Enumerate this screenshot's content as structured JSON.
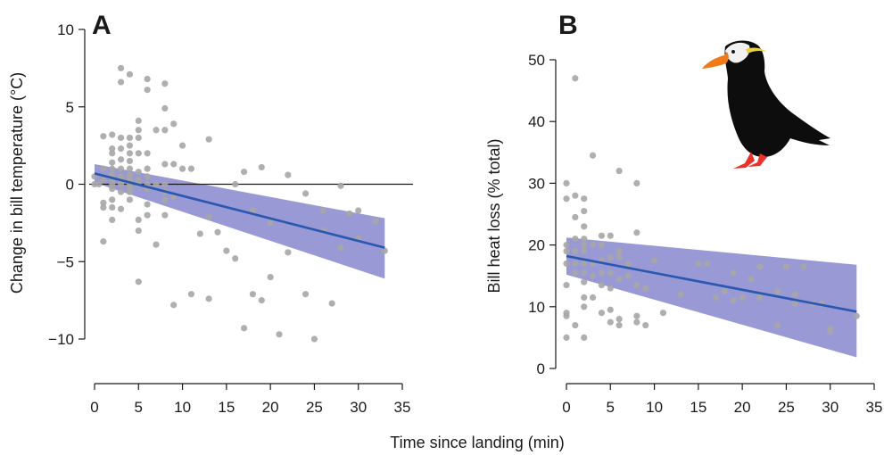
{
  "shared": {
    "xlabel": "Time since landing (min)"
  },
  "colors": {
    "points": "#a6a6a6",
    "line": "#2a57b0",
    "band": "#5b5bbd",
    "zero": "#1a1a1a",
    "puffin_body": "#0d0d0d",
    "puffin_bill": "#f07a1a",
    "puffin_feet": "#e8322b",
    "puffin_plume": "#e9d24a"
  },
  "icons": {
    "puffin": "tufted-puffin-silhouette-icon"
  },
  "chart_data": [
    {
      "type": "scatter",
      "panel_label": "A",
      "title": "",
      "xlabel": "Time since landing (min)",
      "ylabel": "Change in bill temperature (°C)",
      "xlim": [
        0,
        35
      ],
      "ylim": [
        -10,
        10
      ],
      "x_ticks": [
        "0",
        "5",
        "10",
        "15",
        "20",
        "25",
        "30",
        "35"
      ],
      "y_ticks": [
        "−10",
        "−5",
        "0",
        "5",
        "10"
      ],
      "y_tick_values": [
        -10,
        -5,
        0,
        5,
        10
      ],
      "zero_line": true,
      "grid": false,
      "points": [
        [
          0,
          0
        ],
        [
          0,
          0.5
        ],
        [
          0.5,
          0
        ],
        [
          1,
          -3.7
        ],
        [
          1,
          -1.2
        ],
        [
          1,
          -1.5
        ],
        [
          1,
          0.3
        ],
        [
          1,
          1
        ],
        [
          1,
          3.1
        ],
        [
          2,
          -2.3
        ],
        [
          2,
          -1.5
        ],
        [
          2,
          -1
        ],
        [
          2,
          -0.3
        ],
        [
          2,
          0
        ],
        [
          2,
          0.3
        ],
        [
          2,
          0.6
        ],
        [
          2,
          1
        ],
        [
          2,
          1.4
        ],
        [
          2,
          2
        ],
        [
          2,
          2.3
        ],
        [
          2,
          3.2
        ],
        [
          3,
          -1.6
        ],
        [
          3,
          -0.5
        ],
        [
          3,
          0
        ],
        [
          3,
          0.3
        ],
        [
          3,
          0.5
        ],
        [
          3,
          1
        ],
        [
          3,
          1.6
        ],
        [
          3,
          2.3
        ],
        [
          3,
          3
        ],
        [
          3,
          6.6
        ],
        [
          3,
          7.5
        ],
        [
          4,
          -1
        ],
        [
          4,
          -0.5
        ],
        [
          4,
          -0.2
        ],
        [
          4,
          0
        ],
        [
          4,
          0.3
        ],
        [
          4,
          0.6
        ],
        [
          4,
          1
        ],
        [
          4,
          1.5
        ],
        [
          4,
          2
        ],
        [
          4,
          2.5
        ],
        [
          4,
          3
        ],
        [
          4,
          7.1
        ],
        [
          5,
          -6.3
        ],
        [
          5,
          -3
        ],
        [
          5,
          -2.3
        ],
        [
          5,
          0
        ],
        [
          5,
          0.3
        ],
        [
          5,
          0.8
        ],
        [
          5,
          2
        ],
        [
          5,
          3
        ],
        [
          5,
          3.5
        ],
        [
          5,
          4.1
        ],
        [
          6,
          -2
        ],
        [
          6,
          -1.3
        ],
        [
          6,
          -0.3
        ],
        [
          6,
          0
        ],
        [
          6,
          0.5
        ],
        [
          6,
          1
        ],
        [
          6,
          2
        ],
        [
          6,
          6.1
        ],
        [
          6,
          6.8
        ],
        [
          7,
          -3.9
        ],
        [
          7,
          0
        ],
        [
          7,
          3.5
        ],
        [
          8,
          -2
        ],
        [
          8,
          -1
        ],
        [
          8,
          -0.5
        ],
        [
          8,
          0
        ],
        [
          8,
          1.3
        ],
        [
          8,
          3.5
        ],
        [
          8,
          4.9
        ],
        [
          8,
          6.5
        ],
        [
          9,
          -7.8
        ],
        [
          9,
          -0.8
        ],
        [
          9,
          1.3
        ],
        [
          9,
          3.9
        ],
        [
          10,
          1
        ],
        [
          10,
          2.5
        ],
        [
          11,
          -7.1
        ],
        [
          11,
          1
        ],
        [
          12,
          -3.2
        ],
        [
          13,
          -7.4
        ],
        [
          13,
          -2.1
        ],
        [
          13,
          2.9
        ],
        [
          14,
          -3.1
        ],
        [
          15,
          -4.3
        ],
        [
          16,
          -4.8
        ],
        [
          16,
          0
        ],
        [
          17,
          -9.3
        ],
        [
          17,
          0.8
        ],
        [
          18,
          -7.1
        ],
        [
          18,
          -1.7
        ],
        [
          19,
          -7.5
        ],
        [
          19,
          1.1
        ],
        [
          20,
          -6
        ],
        [
          20,
          -2.5
        ],
        [
          21,
          -9.7
        ],
        [
          22,
          -4.4
        ],
        [
          22,
          0.6
        ],
        [
          24,
          -7.1
        ],
        [
          24,
          -0.6
        ],
        [
          25,
          -10
        ],
        [
          26,
          -3
        ],
        [
          26,
          -1.7
        ],
        [
          27,
          -7.7
        ],
        [
          28,
          -4.1
        ],
        [
          28,
          -0.1
        ],
        [
          29,
          -1.9
        ],
        [
          30,
          -3.5
        ],
        [
          30,
          -1.7
        ],
        [
          32,
          -2.4
        ],
        [
          33,
          -4.3
        ]
      ],
      "fit": {
        "x": [
          0,
          33
        ],
        "y": [
          0.7,
          -4.1
        ]
      },
      "band": {
        "x": [
          0,
          33
        ],
        "upper": [
          1.3,
          -2.2
        ],
        "lower": [
          0.1,
          -6.1
        ]
      }
    },
    {
      "type": "scatter",
      "panel_label": "B",
      "title": "",
      "xlabel": "Time since landing (min)",
      "ylabel": "Bill heat loss (% total)",
      "xlim": [
        0,
        35
      ],
      "ylim": [
        0,
        50
      ],
      "x_ticks": [
        "0",
        "5",
        "10",
        "15",
        "20",
        "25",
        "30",
        "35"
      ],
      "y_ticks": [
        "0",
        "10",
        "20",
        "30",
        "40",
        "50"
      ],
      "y_tick_values": [
        0,
        10,
        20,
        30,
        40,
        50
      ],
      "zero_line": false,
      "grid": false,
      "points": [
        [
          0,
          5
        ],
        [
          0,
          8.5
        ],
        [
          0,
          9
        ],
        [
          0,
          13.5
        ],
        [
          0,
          17
        ],
        [
          0,
          19
        ],
        [
          0,
          20
        ],
        [
          0,
          27.5
        ],
        [
          0,
          30
        ],
        [
          1,
          7
        ],
        [
          1,
          15.5
        ],
        [
          1,
          17
        ],
        [
          1,
          19
        ],
        [
          1,
          21
        ],
        [
          1,
          24.5
        ],
        [
          1,
          28
        ],
        [
          1,
          47
        ],
        [
          2,
          5
        ],
        [
          2,
          10
        ],
        [
          2,
          11.5
        ],
        [
          2,
          14
        ],
        [
          2,
          15.5
        ],
        [
          2,
          17
        ],
        [
          2,
          19
        ],
        [
          2,
          20
        ],
        [
          2,
          21
        ],
        [
          2,
          23
        ],
        [
          2,
          25.5
        ],
        [
          2,
          27.5
        ],
        [
          3,
          11.5
        ],
        [
          3,
          15
        ],
        [
          3,
          17
        ],
        [
          3,
          20
        ],
        [
          3,
          34.5
        ],
        [
          4,
          9
        ],
        [
          4,
          13.5
        ],
        [
          4,
          15.5
        ],
        [
          4,
          17.5
        ],
        [
          4,
          20
        ],
        [
          4,
          21.5
        ],
        [
          5,
          7.5
        ],
        [
          5,
          9.5
        ],
        [
          5,
          13
        ],
        [
          5,
          15.5
        ],
        [
          5,
          18
        ],
        [
          5,
          21.5
        ],
        [
          6,
          7
        ],
        [
          6,
          8
        ],
        [
          6,
          14.5
        ],
        [
          6,
          18
        ],
        [
          6,
          19
        ],
        [
          6,
          32
        ],
        [
          7,
          15
        ],
        [
          7,
          17
        ],
        [
          8,
          7.5
        ],
        [
          8,
          8.5
        ],
        [
          8,
          13.5
        ],
        [
          8,
          22
        ],
        [
          8,
          30
        ],
        [
          9,
          7
        ],
        [
          9,
          13
        ],
        [
          10,
          17.5
        ],
        [
          11,
          9
        ],
        [
          13,
          12
        ],
        [
          15,
          17
        ],
        [
          16,
          17
        ],
        [
          17,
          11.5
        ],
        [
          18,
          12.5
        ],
        [
          19,
          11
        ],
        [
          19,
          15.5
        ],
        [
          20,
          11.5
        ],
        [
          21,
          14.5
        ],
        [
          22,
          11.5
        ],
        [
          22,
          16.5
        ],
        [
          24,
          7
        ],
        [
          24,
          12.5
        ],
        [
          25,
          16.5
        ],
        [
          26,
          10.5
        ],
        [
          26,
          12
        ],
        [
          27,
          16.5
        ],
        [
          28,
          10.5
        ],
        [
          29,
          10.5
        ],
        [
          30,
          6
        ],
        [
          30,
          6.5
        ],
        [
          33,
          8.5
        ]
      ],
      "fit": {
        "x": [
          0,
          33
        ],
        "y": [
          18.2,
          9.2
        ]
      },
      "band": {
        "x": [
          0,
          33
        ],
        "upper": [
          21.2,
          16.8
        ],
        "lower": [
          15.2,
          1.8
        ]
      }
    }
  ]
}
